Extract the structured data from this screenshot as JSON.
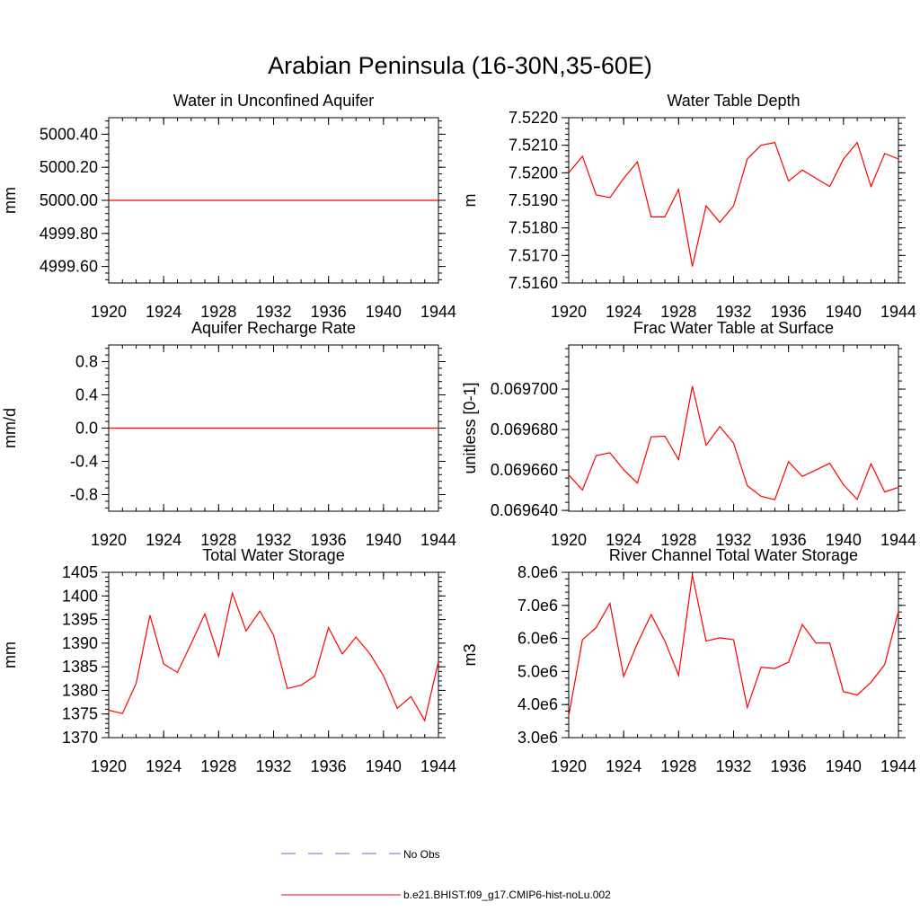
{
  "figure_title": "Arabian Peninsula (16-30N,35-60E)",
  "legend": [
    {
      "label": "No Obs",
      "color": "#5a6ecf",
      "style": "dashed"
    },
    {
      "label": "b.e21.BHIST.f09_g17.CMIP6-hist-noLu.002",
      "color": "#ff0000",
      "style": "solid"
    }
  ],
  "chart_data": [
    {
      "type": "line",
      "title": "Water in Unconfined Aquifer",
      "ylabel": "mm",
      "xlim": [
        1920,
        1944
      ],
      "ylim": [
        4999.5,
        5000.5
      ],
      "xticks": [
        1920,
        1924,
        1928,
        1932,
        1936,
        1940,
        1944
      ],
      "xtick_labels": [
        "1920",
        "1924",
        "1928",
        "1932",
        "1936",
        "1940",
        "1944"
      ],
      "yticks": [
        4999.6,
        4999.8,
        5000.0,
        5000.2,
        5000.4
      ],
      "ytick_labels": [
        "4999.60",
        "4999.80",
        "5000.00",
        "5000.20",
        "5000.40"
      ],
      "minor_y": 0.04,
      "x": [
        1920,
        1921,
        1922,
        1923,
        1924,
        1925,
        1926,
        1927,
        1928,
        1929,
        1930,
        1931,
        1932,
        1933,
        1934,
        1935,
        1936,
        1937,
        1938,
        1939,
        1940,
        1941,
        1942,
        1943,
        1944
      ],
      "series": [
        {
          "color": "#ff0000",
          "values": [
            5000,
            5000,
            5000,
            5000,
            5000,
            5000,
            5000,
            5000,
            5000,
            5000,
            5000,
            5000,
            5000,
            5000,
            5000,
            5000,
            5000,
            5000,
            5000,
            5000,
            5000,
            5000,
            5000,
            5000,
            5000
          ]
        }
      ]
    },
    {
      "type": "line",
      "title": "Water Table Depth",
      "ylabel": "m",
      "xlim": [
        1920,
        1944
      ],
      "ylim": [
        7.516,
        7.522
      ],
      "xticks": [
        1920,
        1924,
        1928,
        1932,
        1936,
        1940,
        1944
      ],
      "xtick_labels": [
        "1920",
        "1924",
        "1928",
        "1932",
        "1936",
        "1940",
        "1944"
      ],
      "yticks": [
        7.516,
        7.517,
        7.518,
        7.519,
        7.52,
        7.521,
        7.522
      ],
      "ytick_labels": [
        "7.5160",
        "7.5170",
        "7.5180",
        "7.5190",
        "7.5200",
        "7.5210",
        "7.5220"
      ],
      "minor_y": 0.0002,
      "x": [
        1920,
        1921,
        1922,
        1923,
        1924,
        1925,
        1926,
        1927,
        1928,
        1929,
        1930,
        1931,
        1932,
        1933,
        1934,
        1935,
        1936,
        1937,
        1938,
        1939,
        1940,
        1941,
        1942,
        1943,
        1944
      ],
      "series": [
        {
          "color": "#ff0000",
          "values": [
            7.52,
            7.5206,
            7.5192,
            7.5191,
            7.5198,
            7.5204,
            7.5184,
            7.5184,
            7.5194,
            7.5166,
            7.5188,
            7.5182,
            7.5188,
            7.5205,
            7.521,
            7.5211,
            7.5197,
            7.5201,
            7.5198,
            7.5195,
            7.5205,
            7.5211,
            7.5195,
            7.5207,
            7.5205
          ]
        }
      ]
    },
    {
      "type": "line",
      "title": "Aquifer Recharge Rate",
      "ylabel": "mm/d",
      "xlim": [
        1920,
        1944
      ],
      "ylim": [
        -1.0,
        1.0
      ],
      "xticks": [
        1920,
        1924,
        1928,
        1932,
        1936,
        1940,
        1944
      ],
      "xtick_labels": [
        "1920",
        "1924",
        "1928",
        "1932",
        "1936",
        "1940",
        "1944"
      ],
      "yticks": [
        -0.8,
        -0.4,
        0.0,
        0.4,
        0.8
      ],
      "ytick_labels": [
        "-0.8",
        "-0.4",
        "0.0",
        "0.4",
        "0.8"
      ],
      "minor_y": 0.08,
      "x": [
        1920,
        1921,
        1922,
        1923,
        1924,
        1925,
        1926,
        1927,
        1928,
        1929,
        1930,
        1931,
        1932,
        1933,
        1934,
        1935,
        1936,
        1937,
        1938,
        1939,
        1940,
        1941,
        1942,
        1943,
        1944
      ],
      "series": [
        {
          "color": "#ff0000",
          "values": [
            0,
            0,
            0,
            0,
            0,
            0,
            0,
            0,
            0,
            0,
            0,
            0,
            0,
            0,
            0,
            0,
            0,
            0,
            0,
            0,
            0,
            0,
            0,
            0,
            0
          ]
        }
      ]
    },
    {
      "type": "line",
      "title": "Frac Water Table at Surface",
      "ylabel": "unitless [0-1]",
      "xlim": [
        1920,
        1944
      ],
      "ylim": [
        0.0696396,
        0.0697218
      ],
      "xticks": [
        1920,
        1924,
        1928,
        1932,
        1936,
        1940,
        1944
      ],
      "xtick_labels": [
        "1920",
        "1924",
        "1928",
        "1932",
        "1936",
        "1940",
        "1944"
      ],
      "yticks": [
        0.06964,
        0.06966,
        0.06968,
        0.0697
      ],
      "ytick_labels": [
        "0.069640",
        "0.069660",
        "0.069680",
        "0.069700"
      ],
      "minor_y": 4e-06,
      "x": [
        1920,
        1921,
        1922,
        1923,
        1924,
        1925,
        1926,
        1927,
        1928,
        1929,
        1930,
        1931,
        1932,
        1933,
        1934,
        1935,
        1936,
        1937,
        1938,
        1939,
        1940,
        1941,
        1942,
        1943,
        1944
      ],
      "series": [
        {
          "color": "#ff0000",
          "values": [
            0.0696576,
            0.0696501,
            0.0696671,
            0.0696685,
            0.0696601,
            0.0696535,
            0.0696764,
            0.0696767,
            0.0696651,
            0.0697014,
            0.0696722,
            0.0696815,
            0.0696733,
            0.0696522,
            0.069647,
            0.0696453,
            0.0696641,
            0.0696568,
            0.06966,
            0.0696633,
            0.0696527,
            0.0696454,
            0.0696631,
            0.0696491,
            0.0696514
          ]
        }
      ]
    },
    {
      "type": "line",
      "title": "Total Water Storage",
      "ylabel": "mm",
      "xlim": [
        1920,
        1944
      ],
      "ylim": [
        1370,
        1405
      ],
      "xticks": [
        1920,
        1924,
        1928,
        1932,
        1936,
        1940,
        1944
      ],
      "xtick_labels": [
        "1920",
        "1924",
        "1928",
        "1932",
        "1936",
        "1940",
        "1944"
      ],
      "yticks": [
        1370,
        1375,
        1380,
        1385,
        1390,
        1395,
        1400,
        1405
      ],
      "ytick_labels": [
        "1370",
        "1375",
        "1380",
        "1385",
        "1390",
        "1395",
        "1400",
        "1405"
      ],
      "minor_y": 1,
      "x": [
        1920,
        1921,
        1922,
        1923,
        1924,
        1925,
        1926,
        1927,
        1928,
        1929,
        1930,
        1931,
        1932,
        1933,
        1934,
        1935,
        1936,
        1937,
        1938,
        1939,
        1940,
        1941,
        1942,
        1943,
        1944
      ],
      "series": [
        {
          "color": "#ff0000",
          "values": [
            1375.8,
            1375.1,
            1381.5,
            1395.9,
            1385.6,
            1383.8,
            1389.9,
            1396.2,
            1387.2,
            1400.6,
            1392.6,
            1396.8,
            1391.7,
            1380.4,
            1381.1,
            1383.0,
            1393.3,
            1387.7,
            1391.3,
            1387.8,
            1383.1,
            1376.2,
            1378.7,
            1373.6,
            1386.1
          ]
        }
      ]
    },
    {
      "type": "line",
      "title": "River Channel Total Water Storage",
      "ylabel": "m3",
      "xlim": [
        1920,
        1944
      ],
      "ylim": [
        3000000,
        8000000
      ],
      "xticks": [
        1920,
        1924,
        1928,
        1932,
        1936,
        1940,
        1944
      ],
      "xtick_labels": [
        "1920",
        "1924",
        "1928",
        "1932",
        "1936",
        "1940",
        "1944"
      ],
      "yticks": [
        3000000,
        4000000,
        5000000,
        6000000,
        7000000,
        8000000
      ],
      "ytick_labels": [
        "3.0e6",
        "4.0e6",
        "5.0e6",
        "6.0e6",
        "7.0e6",
        "8.0e6"
      ],
      "minor_y": 200000,
      "x": [
        1920,
        1921,
        1922,
        1923,
        1924,
        1925,
        1926,
        1927,
        1928,
        1929,
        1930,
        1931,
        1932,
        1933,
        1934,
        1935,
        1936,
        1937,
        1938,
        1939,
        1940,
        1941,
        1942,
        1943,
        1944
      ],
      "series": [
        {
          "color": "#ff0000",
          "values": [
            3650000,
            5960000,
            6330000,
            7060000,
            4850000,
            5850000,
            6720000,
            5920000,
            4880000,
            7920000,
            5920000,
            6020000,
            5960000,
            3910000,
            5130000,
            5090000,
            5280000,
            6420000,
            5860000,
            5860000,
            4390000,
            4290000,
            4670000,
            5210000,
            6820000
          ]
        }
      ]
    }
  ]
}
